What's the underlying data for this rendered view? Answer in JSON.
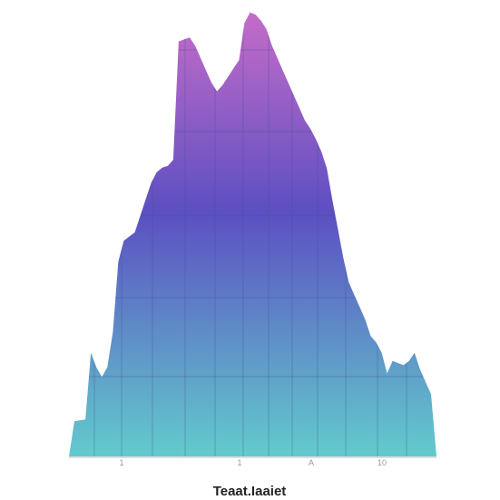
{
  "chart_data": {
    "type": "area",
    "title": "",
    "xlabel": "Teaat.Iaaiet",
    "ylabel": "",
    "x": [
      0,
      1,
      2,
      3,
      4,
      5,
      6,
      7,
      8,
      9,
      10,
      11,
      12,
      13,
      14,
      15,
      16,
      17,
      18,
      19,
      20,
      21,
      22,
      23,
      24,
      25,
      26,
      27,
      28,
      29,
      30,
      31,
      32,
      33,
      34,
      35,
      36,
      37,
      38,
      39,
      40,
      41,
      42,
      43,
      44,
      45,
      46,
      47,
      48,
      49,
      50,
      51,
      52,
      53,
      54,
      55,
      56,
      57,
      58,
      59,
      60,
      61,
      62,
      63,
      64,
      65,
      66,
      67
    ],
    "values": [
      0.0,
      8.5,
      8.7,
      8.9,
      25.0,
      21.5,
      19.2,
      21.5,
      30.0,
      47.0,
      52.0,
      53.0,
      54.0,
      58.0,
      62.0,
      66.0,
      68.5,
      69.6,
      70.0,
      71.5,
      100.0,
      100.5,
      101.0,
      99.0,
      96.0,
      93.0,
      90.0,
      88.0,
      89.5,
      91.5,
      93.5,
      95.5,
      104.5,
      107.0,
      106.5,
      105.0,
      103.0,
      99.0,
      96.0,
      93.0,
      90.0,
      87.0,
      84.0,
      81.0,
      79.0,
      76.5,
      73.5,
      69.5,
      62.0,
      55.0,
      48.0,
      42.0,
      39.0,
      36.0,
      33.0,
      29.0,
      27.5,
      25.0,
      20.0,
      23.0,
      22.5,
      22.0,
      23.0,
      25.0,
      21.0,
      18.0,
      15.0,
      0.0
    ],
    "ylim": [
      0,
      110
    ],
    "grid": true,
    "xticks": [
      "1",
      "1",
      "A",
      "10"
    ],
    "colors": {
      "fill_top": "#c56cc8",
      "fill_mid": "#5c4fc2",
      "fill_bottom": "#62cbcd",
      "grid": "#3d4f8c",
      "baseline": "#bcbcbc",
      "tick_text": "#9a9a9a",
      "axis_title": "#222222"
    }
  }
}
